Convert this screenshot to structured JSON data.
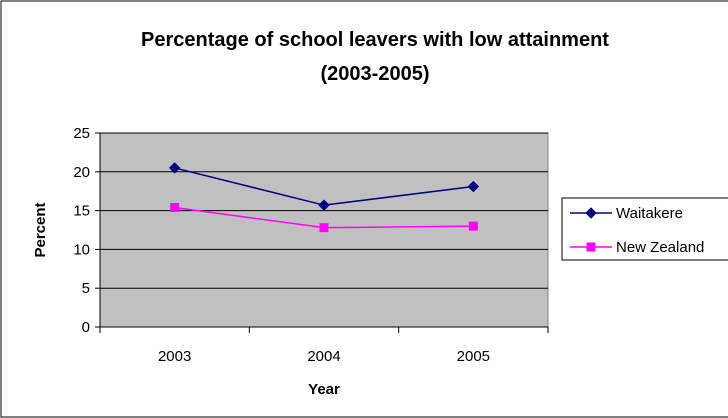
{
  "chart_data": {
    "type": "line",
    "title": "Percentage of school leavers with low attainment",
    "subtitle": "(2003-2005)",
    "xlabel": "Year",
    "ylabel": "Percent",
    "categories": [
      "2003",
      "2004",
      "2005"
    ],
    "ylim": [
      0,
      25
    ],
    "yticks": [
      0,
      5,
      10,
      15,
      20,
      25
    ],
    "grid": true,
    "legend_position": "right",
    "plot_background": "#c0c0c0",
    "series": [
      {
        "name": "Waitakere",
        "values": [
          20.5,
          15.7,
          18.1
        ],
        "color": "#000080",
        "marker": "diamond"
      },
      {
        "name": "New Zealand",
        "values": [
          15.4,
          12.8,
          13.0
        ],
        "color": "#ff00ff",
        "marker": "square"
      }
    ]
  }
}
